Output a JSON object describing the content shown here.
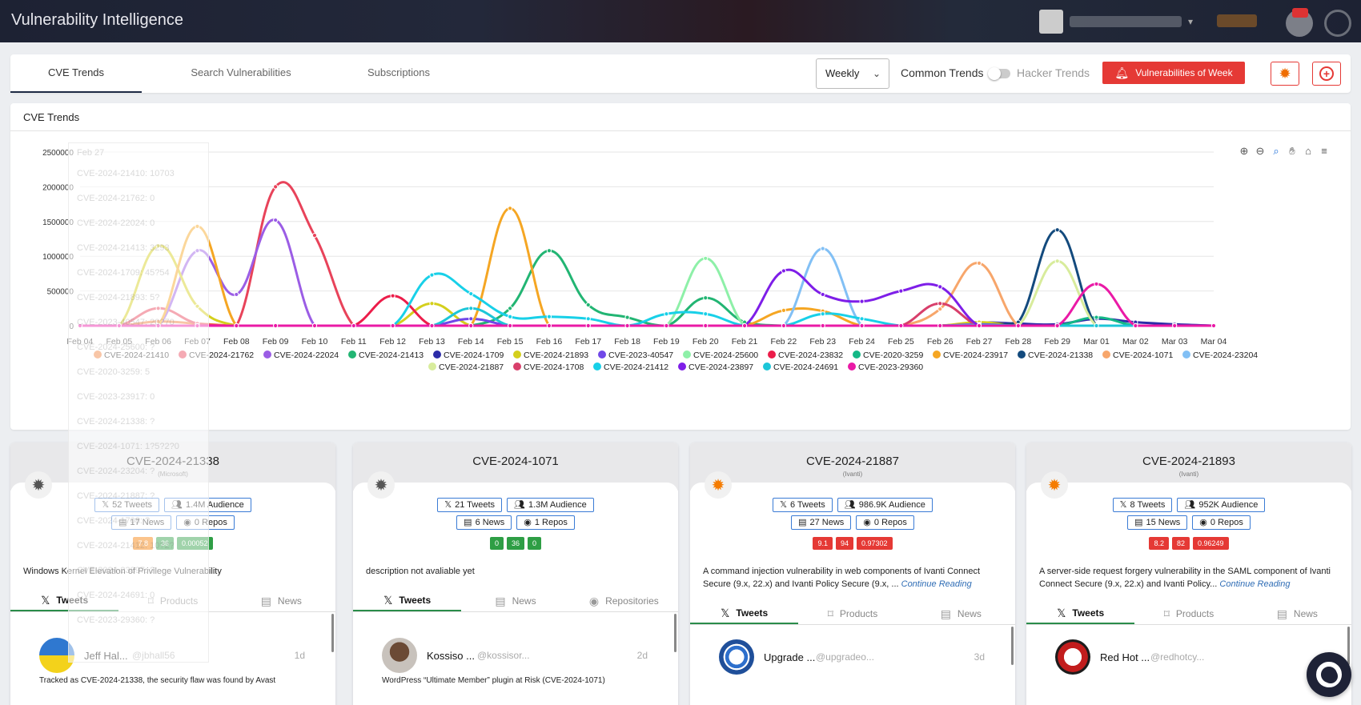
{
  "header": {
    "title": "Vulnerability Intelligence"
  },
  "tabs": [
    {
      "label": "CVE Trends",
      "active": true
    },
    {
      "label": "Search Vulnerabilities",
      "active": false
    },
    {
      "label": "Subscriptions",
      "active": false
    }
  ],
  "toolbar": {
    "period_value": "Weekly",
    "common_trends_label": "Common Trends",
    "hacker_trends_label": "Hacker Trends",
    "hacker_trends_enabled": false,
    "vuln_of_week_label": "Vulnerabilities of Week",
    "accent": "#e53935"
  },
  "chart_panel": {
    "heading": "CVE Trends",
    "toolbar_icons": [
      "zoom-in-icon",
      "zoom-out-icon",
      "zoom-select-icon",
      "pan-hand-icon",
      "home-icon",
      "menu-icon"
    ],
    "tooltip": {
      "date": "Feb 27",
      "rows": [
        "CVE-2024-21410: 10703",
        "CVE-2024-21762: 0",
        "CVE-2024-22024: 0",
        "CVE-2024-21413: 3293",
        "CVE-2024-1709: 45?54",
        "CVE-2024-21893: 5?",
        "CVE-2023-40547: 20?70",
        "CVE-2024-25600: ?",
        "CVE-2020-3259: 5",
        "CVE-2023-23917: 0",
        "CVE-2024-21338: ?",
        "CVE-2024-1071: 1?5?2?0",
        "CVE-2024-23204: ?",
        "CVE-2024-21887: ?",
        "CVE-2024-1708: ?",
        "CVE-2024-21412: 10?2?",
        "CVE-2024-23897: ?",
        "CVE-2024-24691: 0",
        "CVE-2023-29360: ?"
      ]
    }
  },
  "chart_data": {
    "type": "line",
    "x": [
      "Feb 04",
      "Feb 05",
      "Feb 06",
      "Feb 07",
      "Feb 08",
      "Feb 09",
      "Feb 10",
      "Feb 11",
      "Feb 12",
      "Feb 13",
      "Feb 14",
      "Feb 15",
      "Feb 16",
      "Feb 17",
      "Feb 18",
      "Feb 19",
      "Feb 20",
      "Feb 21",
      "Feb 22",
      "Feb 23",
      "Feb 24",
      "Feb 25",
      "Feb 26",
      "Feb 27",
      "Feb 28",
      "Feb 29",
      "Mar 01",
      "Mar 02",
      "Mar 03",
      "Mar 04"
    ],
    "ylim": [
      0,
      2500000
    ],
    "yticks": [
      0,
      500000,
      1000000,
      1500000,
      2000000,
      2500000
    ],
    "grid": true,
    "legend_position": "bottom",
    "series": [
      {
        "name": "CVE-2024-21410",
        "color": "#f0813c",
        "values": [
          0,
          0,
          60000,
          30000,
          0,
          0,
          0,
          0,
          0,
          0,
          0,
          0,
          0,
          0,
          0,
          0,
          0,
          0,
          0,
          0,
          0,
          0,
          0,
          10703,
          0,
          0,
          0,
          0,
          0,
          0
        ]
      },
      {
        "name": "CVE-2024-21762",
        "color": "#e8435a",
        "values": [
          0,
          0,
          250000,
          30000,
          0,
          2000000,
          1300000,
          0,
          0,
          0,
          0,
          0,
          0,
          0,
          0,
          0,
          0,
          0,
          0,
          0,
          0,
          0,
          0,
          0,
          0,
          0,
          0,
          0,
          0,
          0
        ]
      },
      {
        "name": "CVE-2024-22024",
        "color": "#9b5de5",
        "values": [
          0,
          0,
          0,
          1080000,
          450000,
          1520000,
          0,
          0,
          0,
          0,
          0,
          0,
          0,
          0,
          0,
          0,
          0,
          0,
          0,
          0,
          0,
          0,
          0,
          0,
          0,
          0,
          0,
          0,
          0,
          0
        ]
      },
      {
        "name": "CVE-2024-21413",
        "color": "#22b573",
        "values": [
          0,
          0,
          0,
          0,
          0,
          0,
          0,
          0,
          0,
          0,
          0,
          250000,
          1080000,
          300000,
          120000,
          0,
          400000,
          50000,
          0,
          0,
          0,
          0,
          0,
          3293,
          0,
          0,
          0,
          0,
          0,
          0
        ]
      },
      {
        "name": "CVE-2024-1709",
        "color": "#2c2ca8",
        "values": [
          0,
          0,
          0,
          0,
          0,
          0,
          0,
          0,
          0,
          0,
          0,
          0,
          0,
          0,
          0,
          0,
          0,
          0,
          0,
          0,
          0,
          0,
          0,
          45000,
          30000,
          20000,
          100000,
          50000,
          20000,
          0
        ]
      },
      {
        "name": "CVE-2024-21893",
        "color": "#d4cf1c",
        "values": [
          0,
          0,
          1150000,
          280000,
          0,
          0,
          0,
          0,
          0,
          320000,
          0,
          0,
          0,
          0,
          0,
          0,
          0,
          0,
          0,
          0,
          0,
          0,
          0,
          50000,
          0,
          0,
          0,
          0,
          0,
          0
        ]
      },
      {
        "name": "CVE-2023-40547",
        "color": "#7048e8",
        "values": [
          0,
          0,
          0,
          0,
          0,
          0,
          0,
          0,
          0,
          0,
          100000,
          0,
          0,
          0,
          0,
          0,
          0,
          0,
          0,
          0,
          0,
          0,
          0,
          20000,
          0,
          0,
          0,
          0,
          0,
          0
        ]
      },
      {
        "name": "CVE-2024-25600",
        "color": "#8ef0a8",
        "values": [
          0,
          0,
          0,
          0,
          0,
          0,
          0,
          0,
          0,
          0,
          0,
          0,
          0,
          0,
          0,
          0,
          970000,
          0,
          0,
          0,
          0,
          0,
          0,
          0,
          0,
          0,
          0,
          0,
          0,
          0
        ]
      },
      {
        "name": "CVE-2024-23832",
        "color": "#ec1d4a",
        "values": [
          0,
          0,
          0,
          0,
          0,
          0,
          0,
          0,
          430000,
          0,
          0,
          0,
          0,
          0,
          0,
          0,
          0,
          0,
          0,
          0,
          0,
          0,
          0,
          0,
          0,
          0,
          0,
          0,
          0,
          0
        ]
      },
      {
        "name": "CVE-2020-3259",
        "color": "#14b886",
        "values": [
          0,
          0,
          0,
          0,
          0,
          0,
          0,
          0,
          0,
          0,
          0,
          0,
          0,
          0,
          0,
          0,
          0,
          0,
          0,
          0,
          0,
          0,
          0,
          5,
          0,
          0,
          120000,
          0,
          0,
          0
        ]
      },
      {
        "name": "CVE-2024-23917",
        "color": "#f5a623",
        "values": [
          0,
          0,
          0,
          1430000,
          0,
          0,
          0,
          0,
          0,
          0,
          0,
          1690000,
          0,
          0,
          0,
          0,
          0,
          0,
          220000,
          210000,
          0,
          0,
          0,
          0,
          0,
          0,
          0,
          0,
          0,
          0
        ]
      },
      {
        "name": "CVE-2024-21338",
        "color": "#134a7d",
        "values": [
          0,
          0,
          0,
          0,
          0,
          0,
          0,
          0,
          0,
          0,
          0,
          0,
          0,
          0,
          0,
          0,
          0,
          0,
          0,
          0,
          0,
          0,
          0,
          0,
          50000,
          1380000,
          0,
          0,
          0,
          0
        ]
      },
      {
        "name": "CVE-2024-1071",
        "color": "#f7a66b",
        "values": [
          0,
          0,
          0,
          0,
          0,
          0,
          0,
          0,
          0,
          0,
          0,
          0,
          0,
          0,
          0,
          0,
          0,
          0,
          0,
          0,
          0,
          0,
          240000,
          900000,
          0,
          0,
          0,
          0,
          0,
          0
        ]
      },
      {
        "name": "CVE-2024-23204",
        "color": "#82c0f5",
        "values": [
          0,
          0,
          0,
          0,
          0,
          0,
          0,
          0,
          0,
          0,
          0,
          0,
          0,
          0,
          0,
          0,
          0,
          0,
          0,
          1110000,
          0,
          0,
          0,
          0,
          0,
          0,
          0,
          0,
          0,
          0
        ]
      },
      {
        "name": "CVE-2024-21887",
        "color": "#d8ec9c",
        "values": [
          0,
          0,
          0,
          0,
          0,
          0,
          0,
          0,
          0,
          0,
          0,
          0,
          0,
          0,
          0,
          0,
          0,
          0,
          0,
          0,
          0,
          0,
          0,
          0,
          0,
          930000,
          0,
          0,
          0,
          0
        ]
      },
      {
        "name": "CVE-2024-1708",
        "color": "#d83f6b",
        "values": [
          0,
          0,
          0,
          0,
          0,
          0,
          0,
          0,
          0,
          0,
          0,
          0,
          0,
          0,
          0,
          0,
          0,
          0,
          0,
          0,
          0,
          0,
          320000,
          0,
          0,
          0,
          0,
          0,
          0,
          0
        ]
      },
      {
        "name": "CVE-2024-21412",
        "color": "#18d0e8",
        "values": [
          0,
          0,
          0,
          0,
          0,
          0,
          0,
          0,
          0,
          730000,
          460000,
          130000,
          130000,
          100000,
          0,
          170000,
          170000,
          0,
          0,
          170000,
          100000,
          0,
          0,
          10000,
          0,
          0,
          0,
          0,
          0,
          0
        ]
      },
      {
        "name": "CVE-2024-23897",
        "color": "#7e1ee8",
        "values": [
          0,
          0,
          0,
          0,
          0,
          0,
          0,
          0,
          0,
          0,
          0,
          0,
          0,
          0,
          0,
          0,
          0,
          0,
          790000,
          450000,
          350000,
          500000,
          560000,
          0,
          0,
          0,
          0,
          0,
          0,
          0
        ]
      },
      {
        "name": "CVE-2024-24691",
        "color": "#1cc6d8",
        "values": [
          0,
          0,
          0,
          0,
          0,
          0,
          0,
          0,
          0,
          0,
          250000,
          0,
          0,
          0,
          0,
          0,
          0,
          0,
          0,
          0,
          0,
          0,
          0,
          0,
          0,
          0,
          0,
          0,
          0,
          0
        ]
      },
      {
        "name": "CVE-2023-29360",
        "color": "#ea1aa6",
        "values": [
          0,
          0,
          0,
          0,
          0,
          0,
          0,
          0,
          0,
          0,
          0,
          0,
          0,
          0,
          0,
          0,
          0,
          0,
          0,
          0,
          0,
          0,
          0,
          0,
          0,
          0,
          600000,
          0,
          0,
          0
        ]
      }
    ]
  },
  "cards": [
    {
      "cve": "CVE-2024-21338",
      "vendor": "(Microsoft)",
      "bug_color": "#555555",
      "tweets": "52 Tweets",
      "audience": "1.4M Audience",
      "news": "17 News",
      "repos": "0 Repos",
      "scores": [
        {
          "v": "7.8",
          "c": "orange"
        },
        {
          "v": "36",
          "c": "green"
        },
        {
          "v": "0.00052",
          "c": "green"
        }
      ],
      "description": "Windows Kernel Elevation of Privilege Vulnerability",
      "more": "",
      "tabs": [
        "Tweets",
        "Products",
        "News"
      ],
      "tweet": {
        "name": "Jeff Hal...",
        "handle": "@jbhall56",
        "time": "1d",
        "text": "Tracked as CVE-2024-21338, the security flaw was found by Avast"
      }
    },
    {
      "cve": "CVE-2024-1071",
      "vendor": "",
      "bug_color": "#555555",
      "tweets": "21 Tweets",
      "audience": "1.3M Audience",
      "news": "6 News",
      "repos": "1 Repos",
      "scores": [
        {
          "v": "0",
          "c": "green"
        },
        {
          "v": "36",
          "c": "green"
        },
        {
          "v": "0",
          "c": "green"
        }
      ],
      "description": "description not avaliable yet",
      "more": "",
      "tabs": [
        "Tweets",
        "News",
        "Repositories"
      ],
      "tweet": {
        "name": "Kossiso ...",
        "handle": "@kossisor...",
        "time": "2d",
        "text": "WordPress “Ultimate Member” plugin at Risk (CVE-2024-1071)"
      }
    },
    {
      "cve": "CVE-2024-21887",
      "vendor": "(Ivanti)",
      "bug_color": "#f57c00",
      "tweets": "6 Tweets",
      "audience": "986.9K Audience",
      "news": "27 News",
      "repos": "0 Repos",
      "scores": [
        {
          "v": "9.1",
          "c": "red"
        },
        {
          "v": "94",
          "c": "red"
        },
        {
          "v": "0.97302",
          "c": "red"
        }
      ],
      "description": "A command injection vulnerability in web components of Ivanti Connect Secure (9.x, 22.x) and Ivanti Policy Secure (9.x, ...",
      "more": "Continue Reading",
      "tabs": [
        "Tweets",
        "Products",
        "News"
      ],
      "tweet": {
        "name": "Upgrade ...",
        "handle": "@upgradeo...",
        "time": "3d",
        "text": ""
      }
    },
    {
      "cve": "CVE-2024-21893",
      "vendor": "(Ivanti)",
      "bug_color": "#f57c00",
      "tweets": "8 Tweets",
      "audience": "952K Audience",
      "news": "15 News",
      "repos": "0 Repos",
      "scores": [
        {
          "v": "8.2",
          "c": "red"
        },
        {
          "v": "82",
          "c": "red"
        },
        {
          "v": "0.96249",
          "c": "red"
        }
      ],
      "description": "A server-side request forgery vulnerability in the SAML component of Ivanti Connect Secure (9.x, 22.x) and Ivanti Policy...",
      "more": "Continue Reading",
      "tabs": [
        "Tweets",
        "Products",
        "News"
      ],
      "tweet": {
        "name": "Red Hot ...",
        "handle": "@redhotcy...",
        "time": "",
        "text": ""
      }
    }
  ]
}
